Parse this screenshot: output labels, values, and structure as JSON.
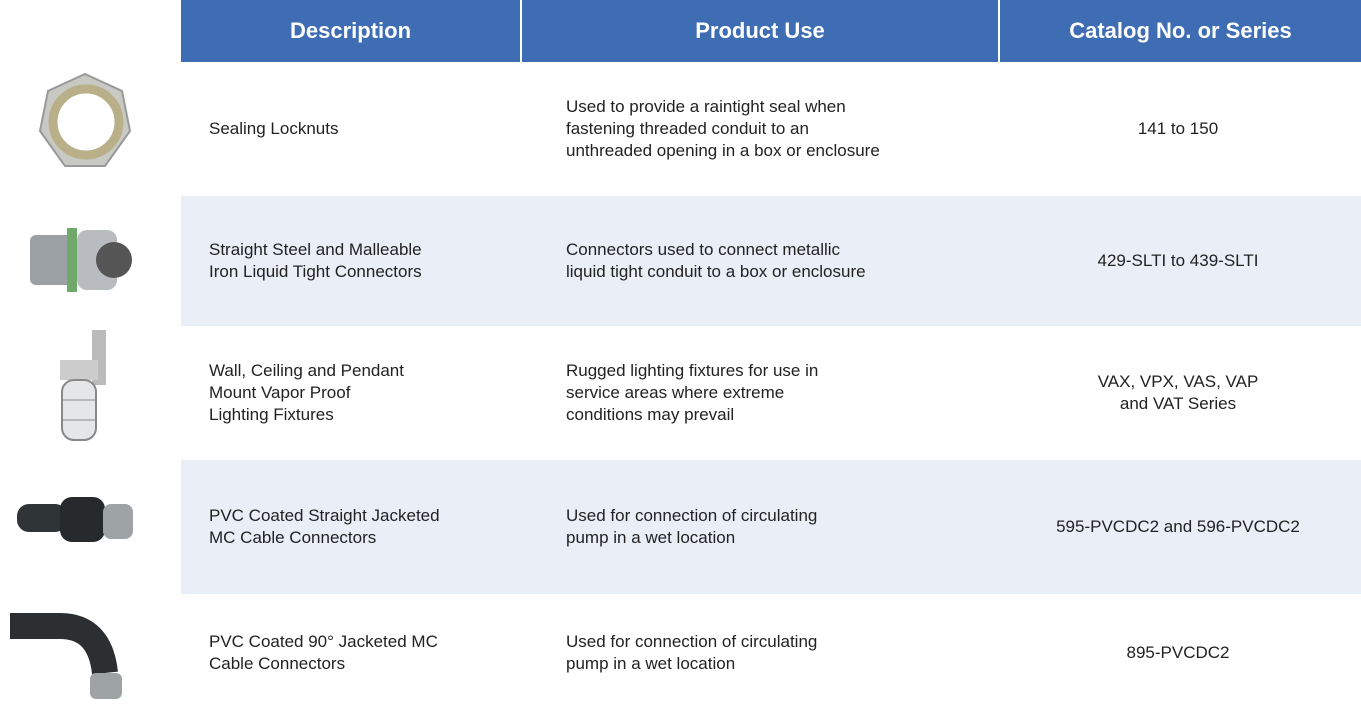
{
  "table": {
    "header": [
      "Description",
      "Product Use",
      "Catalog No. or Series"
    ],
    "rows": [
      [
        "Sealing Locknuts",
        "Used to provide a raintight seal when\nfastening threaded conduit to an\nunthreaded opening in a box or enclosure",
        "141 to 150"
      ],
      [
        "Straight Steel and Malleable\nIron Liquid Tight Connectors",
        "Connectors used to connect metallic\nliquid tight conduit to a box or enclosure",
        "429-SLTI to 439-SLTI"
      ],
      [
        "Wall, Ceiling and Pendant\nMount Vapor Proof\nLighting Fixtures",
        "Rugged lighting fixtures for use in\nservice areas where extreme\nconditions may prevail",
        "VAX, VPX, VAS, VAP\nand VAT Series"
      ],
      [
        "PVC Coated Straight Jacketed\nMC Cable Connectors",
        "Used for connection of circulating\npump in a wet location",
        "595-PVCDC2 and 596-PVCDC2"
      ],
      [
        "PVC Coated 90° Jacketed MC\nCable Connectors",
        "Used for connection of circulating\npump in a wet location",
        "895-PVCDC2"
      ]
    ]
  }
}
